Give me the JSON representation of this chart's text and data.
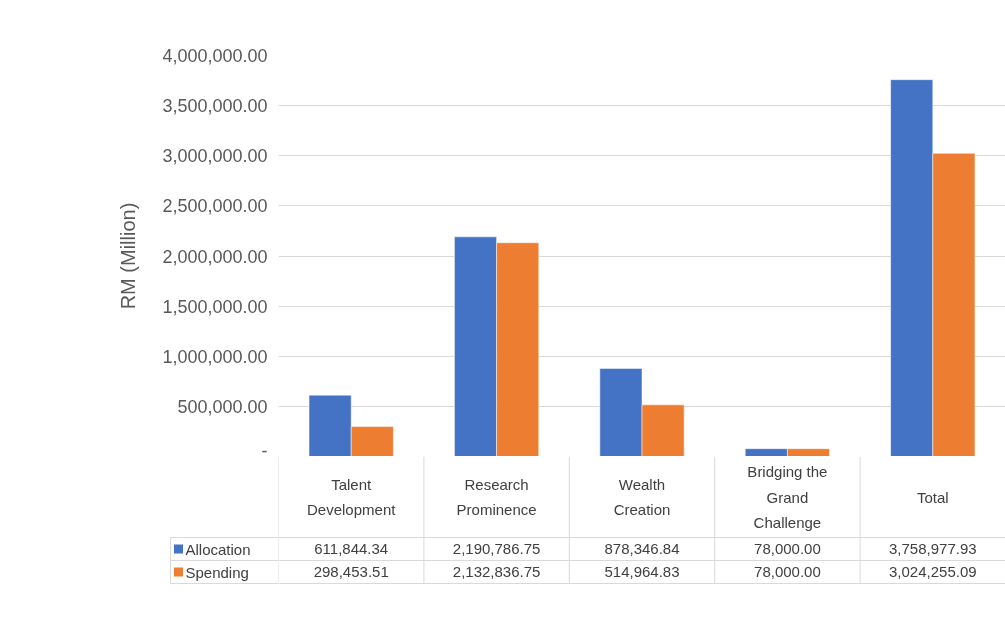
{
  "chart_data": {
    "type": "bar",
    "ylabel": "RM (Million)",
    "categories": [
      "Talent Development",
      "Research Prominence",
      "Wealth Creation",
      "Bridging the Grand Challenge",
      "Total"
    ],
    "series": [
      {
        "name": "Allocation",
        "color": "#4472c4",
        "values": [
          611844.34,
          2190786.75,
          878346.84,
          78000.0,
          3758977.93
        ],
        "value_labels": [
          "611,844.34",
          "2,190,786.75",
          "878,346.84",
          "78,000.00",
          "3,758,977.93"
        ]
      },
      {
        "name": "Spending",
        "color": "#ed7d31",
        "values": [
          298453.51,
          2132836.75,
          514964.83,
          78000.0,
          3024255.09
        ],
        "value_labels": [
          "298,453.51",
          "2,132,836.75",
          "514,964.83",
          "78,000.00",
          "3,024,255.09"
        ]
      }
    ],
    "ylim": [
      0,
      4000000
    ],
    "yticks": [
      {
        "value": 0,
        "label": "-"
      },
      {
        "value": 500000,
        "label": "500,000.00"
      },
      {
        "value": 1000000,
        "label": "1,000,000.00"
      },
      {
        "value": 1500000,
        "label": "1,500,000.00"
      },
      {
        "value": 2000000,
        "label": "2,000,000.00"
      },
      {
        "value": 2500000,
        "label": "2,500,000.00"
      },
      {
        "value": 3000000,
        "label": "3,000,000.00"
      },
      {
        "value": 3500000,
        "label": "3,500,000.00"
      },
      {
        "value": 4000000,
        "label": "4,000,000.00"
      }
    ],
    "grid": "y",
    "legend": "bottom"
  }
}
